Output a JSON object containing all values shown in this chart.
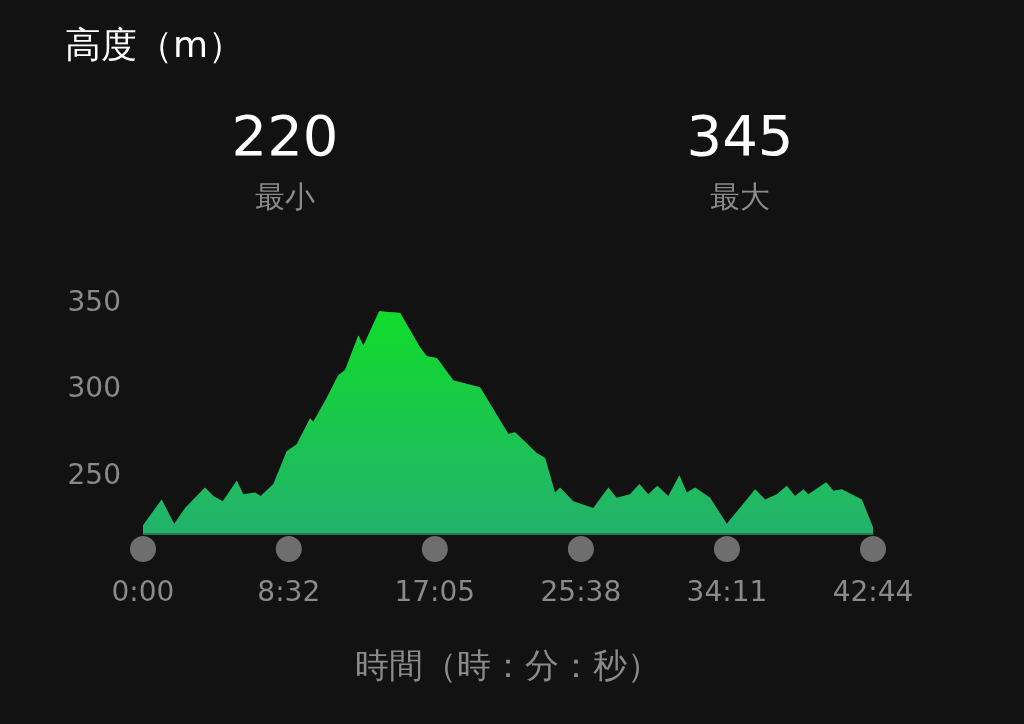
{
  "chart_data": {
    "type": "area",
    "title": "高度（m）",
    "xlabel": "時間（時：分：秒）",
    "annotations": [
      "220",
      "最小",
      "345",
      "最大"
    ],
    "xlim": [
      0,
      42.733
    ],
    "ylim": [
      215,
      350
    ],
    "xticks": [
      {
        "value": 0,
        "label": "0:00"
      },
      {
        "value": 8.533,
        "label": "8:32"
      },
      {
        "value": 17.083,
        "label": "17:05"
      },
      {
        "value": 25.633,
        "label": "25:38"
      },
      {
        "value": 34.183,
        "label": "34:11"
      },
      {
        "value": 42.733,
        "label": "42:44"
      }
    ],
    "yticks": [
      250,
      300,
      350
    ],
    "grid": false,
    "series": [
      {
        "color": "#10dc2a",
        "x": [
          0,
          1.09,
          1.83,
          2.46,
          3.63,
          4.12,
          4.67,
          5.49,
          5.87,
          6.56,
          6.89,
          7.63,
          8.41,
          9.0,
          9.78,
          9.97,
          10.76,
          11.43,
          11.83,
          12.61,
          12.9,
          13.83,
          15.05,
          16.22,
          16.61,
          17.2,
          18.17,
          19.73,
          21.39,
          21.78,
          23.05,
          23.54,
          24.12,
          24.41,
          25.19,
          26.36,
          27.24,
          27.73,
          28.51,
          29.06,
          29.58,
          30.11,
          30.75,
          31.4,
          31.83,
          32.32,
          33.2,
          34.17,
          34.85,
          35.83,
          36.42,
          37.1,
          37.69,
          38.17,
          38.66,
          38.95,
          39.99,
          40.42,
          40.91,
          42.08,
          42.733
        ],
        "values": [
          220,
          235,
          221,
          230,
          242,
          237,
          234,
          246,
          238,
          239,
          237,
          244,
          263,
          267,
          282,
          280,
          294,
          307,
          310,
          330,
          324,
          344,
          343,
          323,
          318,
          317,
          304,
          300,
          273,
          274,
          262,
          259,
          239,
          242,
          234,
          230,
          242,
          236,
          238,
          244,
          238,
          243,
          237,
          249,
          239,
          242,
          236,
          221,
          229,
          241,
          235,
          238,
          243,
          237,
          241,
          238,
          245,
          240,
          241,
          235,
          219
        ]
      }
    ]
  }
}
